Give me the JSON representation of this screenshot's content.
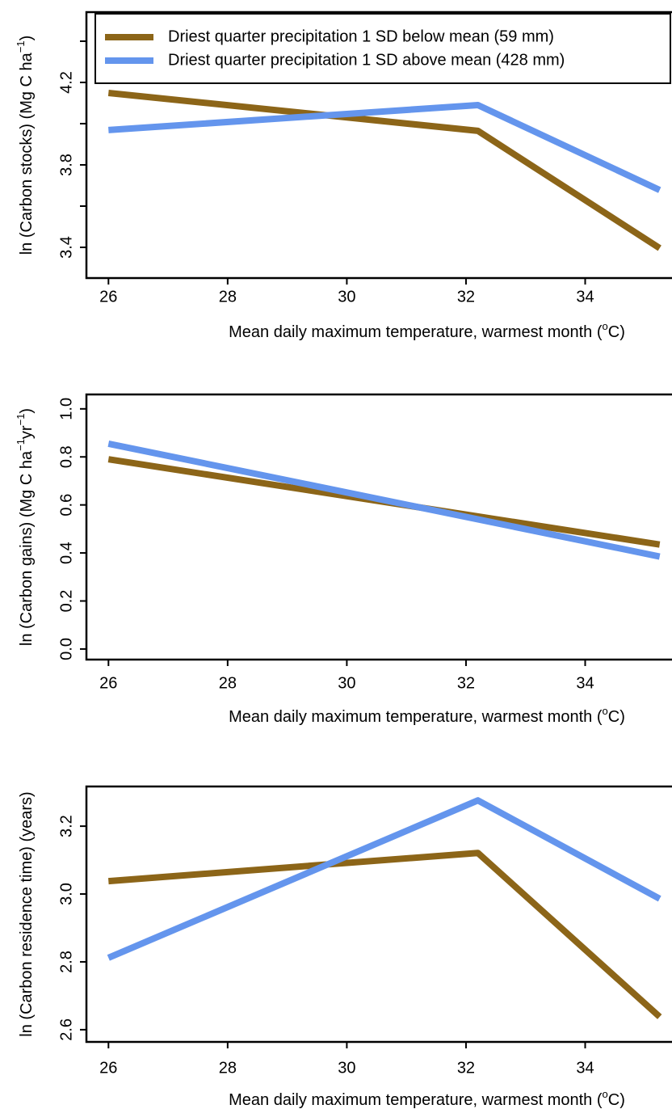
{
  "chart_data": [
    {
      "type": "line",
      "ylabel": [
        "ln (Carbon stocks) (Mg C ha",
        "−1",
        ")"
      ],
      "xlabel": [
        "Mean daily maximum temperature, warmest month (",
        "o",
        "C)"
      ],
      "x": [
        26,
        32.2,
        35.25
      ],
      "series": [
        {
          "name": "Driest quarter precipitation 1 SD below mean (59 mm)",
          "color": "#8c6518",
          "values": [
            4.149,
            3.965,
            3.396
          ]
        },
        {
          "name": "Driest quarter precipitation 1 SD above mean (428 mm)",
          "color": "#6495ed",
          "values": [
            3.969,
            4.09,
            3.678
          ]
        }
      ],
      "xlim": [
        25.63,
        35.43
      ],
      "ylim": [
        3.251,
        4.541
      ],
      "xticks": [
        26,
        28,
        30,
        32,
        34
      ],
      "yticks": [
        3.4,
        {
          "value": 3.6,
          "label": null
        },
        3.8,
        {
          "value": 4.0,
          "label": null
        },
        4.2,
        {
          "value": 4.4,
          "label": null
        }
      ],
      "legend": "top-left"
    },
    {
      "type": "line",
      "ylabel": [
        "ln (Carbon gains) (Mg C ha",
        "−1",
        "yr",
        "−1",
        ")"
      ],
      "xlabel": [
        "Mean daily maximum temperature, warmest month (",
        "o",
        "C)"
      ],
      "x": [
        26,
        35.25
      ],
      "series": [
        {
          "name": "Driest quarter precipitation 1 SD below mean (59 mm)",
          "color": "#8c6518",
          "values": [
            0.79,
            0.435
          ]
        },
        {
          "name": "Driest quarter precipitation 1 SD above mean (428 mm)",
          "color": "#6495ed",
          "values": [
            0.855,
            0.385
          ]
        }
      ],
      "xlim": [
        25.63,
        35.43
      ],
      "ylim": [
        -0.044,
        1.06
      ],
      "xticks": [
        26,
        28,
        30,
        32,
        34
      ],
      "yticks": [
        {
          "value": 0,
          "label": "0.0"
        },
        0.2,
        0.4,
        0.6,
        0.8,
        {
          "value": 1,
          "label": "1.0"
        }
      ]
    },
    {
      "type": "line",
      "ylabel": [
        "ln (Carbon residence time) (years)"
      ],
      "xlabel": [
        "Mean daily maximum temperature, warmest month (",
        "o",
        "C)"
      ],
      "x": [
        26,
        32.2,
        35.25
      ],
      "series": [
        {
          "name": "Driest quarter precipitation 1 SD below mean (59 mm)",
          "color": "#8c6518",
          "values": [
            3.038,
            3.121,
            2.638
          ]
        },
        {
          "name": "Driest quarter precipitation 1 SD above mean (428 mm)",
          "color": "#6495ed",
          "values": [
            2.812,
            3.276,
            2.986
          ]
        }
      ],
      "xlim": [
        25.63,
        35.43
      ],
      "ylim": [
        2.564,
        3.317
      ],
      "xticks": [
        26,
        28,
        30,
        32,
        34
      ],
      "yticks": [
        2.6,
        2.8,
        {
          "value": 3,
          "label": "3.0"
        },
        3.2
      ]
    }
  ]
}
